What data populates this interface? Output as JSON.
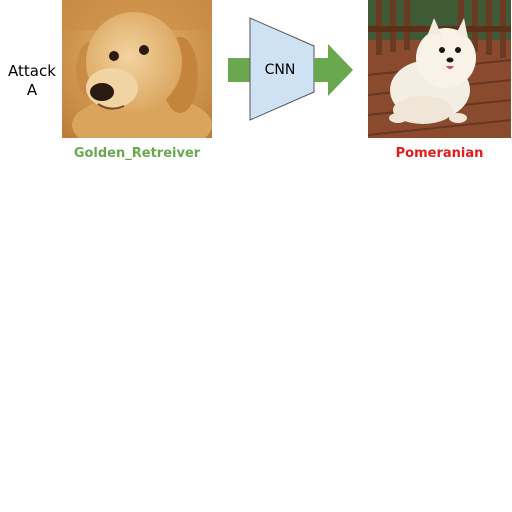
{
  "attack_label": {
    "line1": "Attack",
    "line2": "A"
  },
  "model_label": "CNN",
  "input": {
    "class_label": "Golden_Retreiver",
    "label_color": "#6aa84f"
  },
  "output": {
    "class_label": "Pomeranian",
    "label_color": "#e31b1b"
  },
  "colors": {
    "arrow": "#6aa84f",
    "cnn_fill": "#cfe2f3",
    "cnn_stroke": "#555555"
  }
}
